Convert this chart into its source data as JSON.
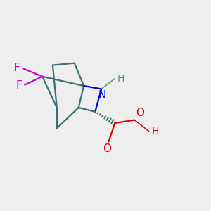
{
  "background_color": "#eeeeee",
  "bond_color": "#3d7070",
  "bond_width": 1.6,
  "atom_colors": {
    "F": "#cc00cc",
    "N": "#0000dd",
    "O": "#dd0000",
    "H_N": "#5a9090",
    "H_O": "#dd0000"
  },
  "figsize": [
    3.0,
    3.0
  ],
  "dpi": 100
}
